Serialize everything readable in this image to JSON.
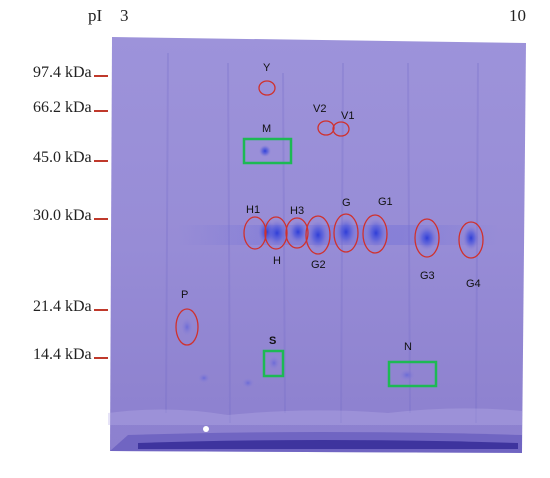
{
  "header": {
    "pi_label": "pI",
    "pi_low": "3",
    "pi_high": "10"
  },
  "markers": [
    {
      "label": "97.4 kDa"
    },
    {
      "label": "66.2 kDa"
    },
    {
      "label": "45.0 kDa"
    },
    {
      "label": "30.0 kDa"
    },
    {
      "label": "21.4 kDa"
    },
    {
      "label": "14.4 kDa"
    }
  ],
  "spots": {
    "Y": "Y",
    "V2": "V2",
    "V1": "V1",
    "M": "M",
    "H1": "H1",
    "H3": "H3",
    "H": "H",
    "G": "G",
    "G1": "G1",
    "G2": "G2",
    "G3": "G3",
    "G4": "G4",
    "P": "P",
    "S": "S",
    "N": "N"
  },
  "colors": {
    "red_circle": "#d0312d",
    "green_box": "#1db954",
    "gel": "#9b8fd8"
  }
}
